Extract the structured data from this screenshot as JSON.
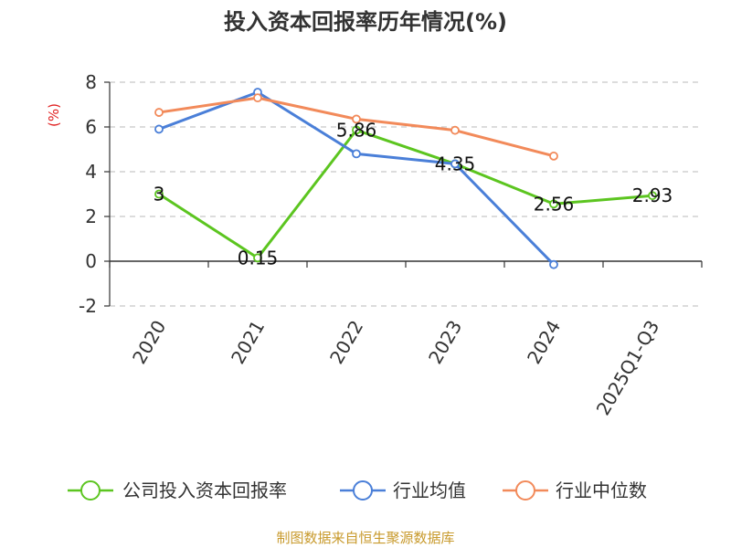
{
  "chart_data": {
    "type": "line",
    "title": "投入资本回报率历年情况(%)",
    "ylabel": "(%)",
    "categories": [
      "2020",
      "2021",
      "2022",
      "2023",
      "2024",
      "2025Q1-Q3"
    ],
    "ylim": [
      -2,
      8
    ],
    "yticks": [
      "8",
      "6",
      "4",
      "2",
      "0",
      "-2"
    ],
    "grid": true,
    "legend_position": "bottom",
    "series": [
      {
        "name": "公司投入资本回报率",
        "color": "#5cc520",
        "values": [
          3,
          0.15,
          5.86,
          4.35,
          2.56,
          2.93
        ],
        "labels": [
          "3",
          "0.15",
          "5.86",
          "4.35",
          "2.56",
          "2.93"
        ]
      },
      {
        "name": "行业均值",
        "color": "#4a7fd8",
        "values": [
          5.9,
          7.55,
          4.8,
          4.35,
          -0.15,
          null
        ]
      },
      {
        "name": "行业中位数",
        "color": "#f28a5a",
        "values": [
          6.65,
          7.3,
          6.35,
          5.85,
          4.7,
          null
        ]
      }
    ]
  },
  "source": "制图数据来自恒生聚源数据库"
}
